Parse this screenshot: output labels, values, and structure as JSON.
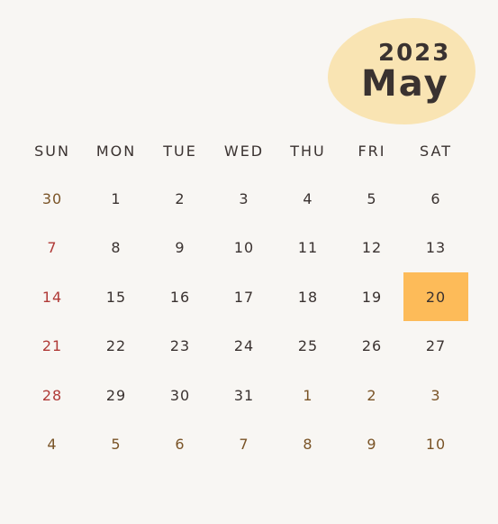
{
  "header": {
    "year": "2023",
    "month": "May"
  },
  "weekdays": [
    "SUN",
    "MON",
    "TUE",
    "WED",
    "THU",
    "FRI",
    "SAT"
  ],
  "weeks": [
    [
      "30",
      "1",
      "2",
      "3",
      "4",
      "5",
      "6"
    ],
    [
      "7",
      "8",
      "9",
      "10",
      "11",
      "12",
      "13"
    ],
    [
      "14",
      "15",
      "16",
      "17",
      "18",
      "19",
      "20"
    ],
    [
      "21",
      "22",
      "23",
      "24",
      "25",
      "26",
      "27"
    ],
    [
      "28",
      "29",
      "30",
      "31",
      "1",
      "2",
      "3"
    ],
    [
      "4",
      "5",
      "6",
      "7",
      "8",
      "9",
      "10"
    ]
  ],
  "colors": {
    "background": "#f8f6f3",
    "header_blob": "#f9e4b3",
    "text": "#3a3230",
    "sunday": "#b03a37",
    "other_month": "#7a5427",
    "highlight": "#fdbb59"
  }
}
